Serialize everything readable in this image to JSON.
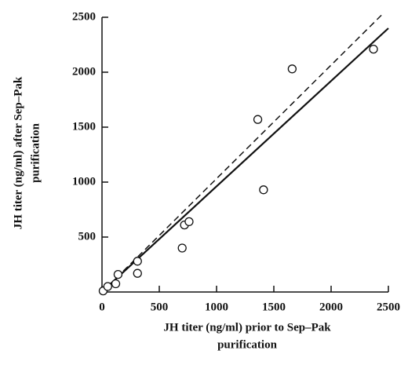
{
  "chart_data": {
    "type": "scatter",
    "x_label": [
      "JH titer (ng/ml) prior to Sep–Pak",
      "purification"
    ],
    "y_label": [
      "JH titer (ng/ml) after Sep–Pak",
      "purification"
    ],
    "x": [
      10,
      50,
      120,
      140,
      310,
      310,
      700,
      720,
      760,
      1360,
      1410,
      1660,
      2370
    ],
    "values": [
      10,
      50,
      75,
      160,
      170,
      280,
      400,
      610,
      640,
      1570,
      930,
      2030,
      2210
    ],
    "marker": "open-circle",
    "color": "#111111",
    "lines": [
      {
        "style": "solid",
        "x": [
          60,
          2500
        ],
        "y": [
          60,
          2400
        ]
      },
      {
        "style": "dashed",
        "x": [
          60,
          2450
        ],
        "y": [
          60,
          2530
        ]
      }
    ],
    "xlim": [
      0,
      2500
    ],
    "ylim": [
      0,
      2500
    ],
    "xticks": [
      0,
      500,
      1000,
      1500,
      2000,
      2500
    ],
    "yticks": [
      500,
      1000,
      1500,
      2000,
      2500
    ],
    "grid": false
  }
}
